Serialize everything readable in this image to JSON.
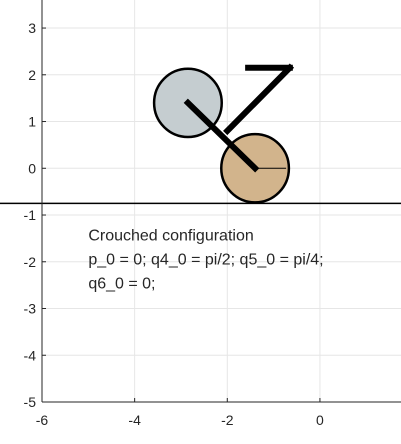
{
  "chart_data": {
    "type": "scatter",
    "title": "",
    "xlabel": "",
    "ylabel": "",
    "xlim": [
      -6,
      1.75
    ],
    "ylim": [
      -5,
      3.6
    ],
    "grid": true,
    "x_ticks": [
      -6,
      -4,
      -2,
      0
    ],
    "y_ticks": [
      -5,
      -4,
      -3,
      -2,
      -1,
      0,
      1,
      2,
      3
    ],
    "ground_line_y": -0.75,
    "bodies": [
      {
        "name": "lower-wheel",
        "cx": -1.4,
        "cy": 0.0,
        "r": 0.73,
        "fill": "#d2b48c"
      },
      {
        "name": "upper-wheel",
        "cx": -2.85,
        "cy": 1.4,
        "r": 0.73,
        "fill": "#c5cdd0"
      }
    ],
    "wheel_spoke": {
      "x": [
        -1.4,
        -0.73
      ],
      "y": [
        0.0,
        0.0
      ]
    },
    "links": [
      {
        "x": [
          -1.4,
          -2.85
        ],
        "y": [
          0.0,
          1.4
        ]
      },
      {
        "x": [
          -2.0,
          -0.65
        ],
        "y": [
          0.8,
          2.15
        ]
      },
      {
        "x": [
          -1.55,
          -0.65
        ],
        "y": [
          2.15,
          2.15
        ]
      }
    ],
    "annotation_lines": [
      "Crouched configuration",
      "p_0 = 0; q4_0 = pi/2; q5_0 = pi/4;",
      "q6_0 = 0;"
    ],
    "annotation_anchor": {
      "x": -5.0,
      "y": -1.55
    }
  }
}
